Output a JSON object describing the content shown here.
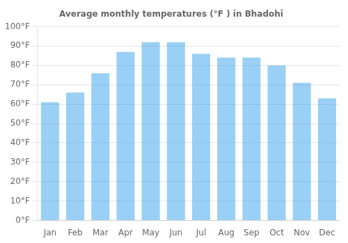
{
  "chart_data": {
    "type": "bar",
    "title": "Average monthly temperatures (°F ) in Bhadohī",
    "categories": [
      "Jan",
      "Feb",
      "Mar",
      "Apr",
      "May",
      "Jun",
      "Jul",
      "Aug",
      "Sep",
      "Oct",
      "Nov",
      "Dec"
    ],
    "values": [
      61,
      66,
      76,
      87,
      92,
      92,
      86,
      84,
      84,
      80,
      71,
      63
    ],
    "ylim": [
      0,
      100
    ],
    "yticks": [
      {
        "value": 0,
        "label": "0°F"
      },
      {
        "value": 10,
        "label": "10°F"
      },
      {
        "value": 20,
        "label": "20°F"
      },
      {
        "value": 30,
        "label": "30°F"
      },
      {
        "value": 40,
        "label": "40°F"
      },
      {
        "value": 50,
        "label": "50°F"
      },
      {
        "value": 60,
        "label": "60°F"
      },
      {
        "value": 70,
        "label": "70°F"
      },
      {
        "value": 80,
        "label": "80°F"
      },
      {
        "value": 90,
        "label": "90°F"
      },
      {
        "value": 100,
        "label": "100°F"
      }
    ],
    "grid": true
  }
}
